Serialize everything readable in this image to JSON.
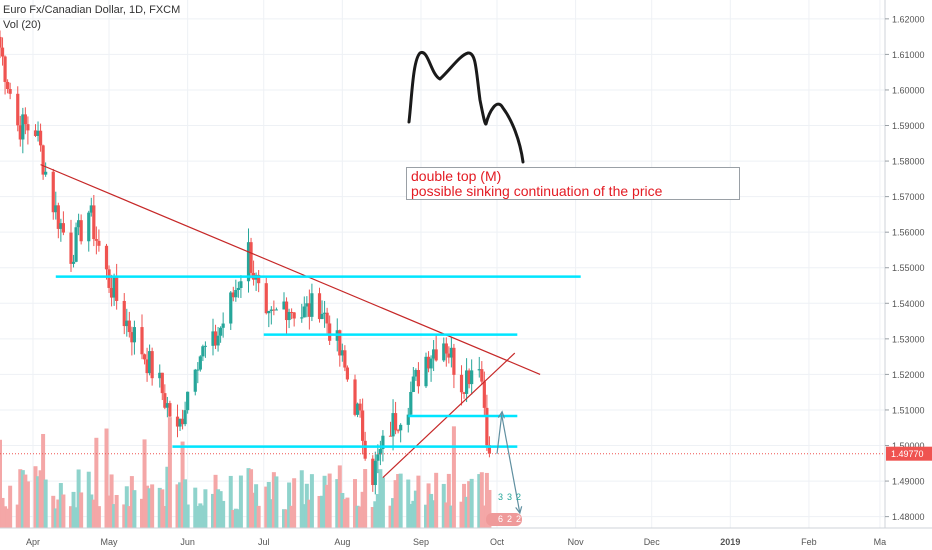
{
  "header": {
    "symbol_line": "Euro Fx/Canadian Dollar, 1D, FXCM",
    "volume_line": "Vol (20)"
  },
  "annotation": {
    "line1": "double top (M)",
    "line2": "possible sinking continuation of the price"
  },
  "chart_data": {
    "type": "candlestick",
    "pair": "Euro Fx/Canadian Dollar",
    "timeframe": "1D",
    "source": "FXCM",
    "last_price_label": "1.49770",
    "last_price": 1.4977,
    "y_axis_ticks": [
      "1.62000",
      "1.61000",
      "1.60000",
      "1.59000",
      "1.58000",
      "1.57000",
      "1.56000",
      "1.55000",
      "1.54000",
      "1.53000",
      "1.52000",
      "1.51000",
      "1.50000",
      "1.49000",
      "1.48000"
    ],
    "ylim": [
      1.4768,
      1.6253
    ],
    "x_axis_labels": [
      "Apr",
      "May",
      "Jun",
      "Jul",
      "Aug",
      "Sep",
      "Oct",
      "Nov",
      "Dec",
      "2019",
      "Feb",
      "Ma"
    ],
    "xlim": [
      "2018-03-19",
      "2019-03-03"
    ],
    "volume_indicator": "Vol (20)",
    "volume_badges": [
      "3",
      "3",
      "2",
      "6",
      "2",
      "2"
    ],
    "price_path": [
      [
        "2018-03-19",
        1.612
      ],
      [
        "2018-03-26",
        1.59
      ],
      [
        "2018-04-02",
        1.589
      ],
      [
        "2018-04-09",
        1.568
      ],
      [
        "2018-04-16",
        1.554
      ],
      [
        "2018-04-23",
        1.566
      ],
      [
        "2018-04-30",
        1.548
      ],
      [
        "2018-05-07",
        1.536
      ],
      [
        "2018-05-14",
        1.527
      ],
      [
        "2018-05-21",
        1.517
      ],
      [
        "2018-05-28",
        1.503
      ],
      [
        "2018-06-04",
        1.525
      ],
      [
        "2018-06-11",
        1.528
      ],
      [
        "2018-06-18",
        1.54
      ],
      [
        "2018-06-25",
        1.555
      ],
      [
        "2018-07-02",
        1.533
      ],
      [
        "2018-07-09",
        1.54
      ],
      [
        "2018-07-16",
        1.537
      ],
      [
        "2018-07-23",
        1.54
      ],
      [
        "2018-07-30",
        1.528
      ],
      [
        "2018-08-06",
        1.512
      ],
      [
        "2018-08-13",
        1.492
      ],
      [
        "2018-08-20",
        1.505
      ],
      [
        "2018-08-27",
        1.513
      ],
      [
        "2018-09-03",
        1.525
      ],
      [
        "2018-09-10",
        1.53
      ],
      [
        "2018-09-17",
        1.518
      ],
      [
        "2018-09-24",
        1.525
      ],
      [
        "2018-09-28",
        1.4977
      ]
    ],
    "drawings": {
      "descending_trendline": [
        [
          "2018-04-04",
          1.579
        ],
        [
          "2018-10-18",
          1.52
        ]
      ],
      "rising_trendline": [
        [
          "2018-08-17",
          1.491
        ],
        [
          "2018-10-08",
          1.526
        ]
      ],
      "horizontal_lines": [
        {
          "from": "2018-04-10",
          "to": "2018-11-03",
          "value": 1.5475
        },
        {
          "from": "2018-07-01",
          "to": "2018-10-09",
          "value": 1.5312
        },
        {
          "from": "2018-08-27",
          "to": "2018-10-09",
          "value": 1.5083
        },
        {
          "from": "2018-05-26",
          "to": "2018-10-09",
          "value": 1.4997
        }
      ],
      "projection_arrows": [
        [
          [
            "2018-10-01",
            1.4977
          ],
          [
            "2018-10-03",
            1.5095
          ]
        ],
        [
          [
            "2018-10-03",
            1.508
          ],
          [
            "2018-10-10",
            1.481
          ]
        ]
      ],
      "price_line_color": "#ef5350"
    },
    "colors": {
      "up": "#26a69a",
      "down": "#ef5350",
      "volume_up": "#8fd3cc",
      "volume_down": "#f4a7a7",
      "trendline": "#c62828",
      "horizontal": "#00e5ff",
      "arrow": "#5f8fa0",
      "grid": "#eef1f5",
      "axis_text": "#555555"
    }
  }
}
